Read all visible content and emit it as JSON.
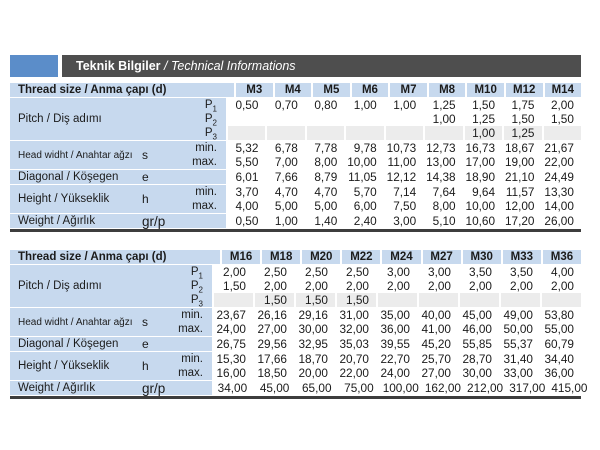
{
  "title": {
    "bold": "Teknik Bilgiler",
    "italic": "/ Technical Informations"
  },
  "colors": {
    "accent_blue": "#5b8dc9",
    "bar_dark": "#4e4e4e",
    "cell_blue": "#c7d9ee",
    "cell_gray": "#ececec",
    "text": "#1b1b1b"
  },
  "tables": [
    {
      "name": "spec-table-m3-m14",
      "header_label": "Thread size / Anma çapı (d)",
      "columns": [
        "M3",
        "M4",
        "M5",
        "M6",
        "M7",
        "M8",
        "M10",
        "M12",
        "M14"
      ],
      "row_groups": [
        {
          "label": "Pitch / Diş adımı",
          "symbol": "",
          "rows": [
            {
              "sub": "P",
              "subscript": "1",
              "shade": false,
              "values": [
                "0,50",
                "0,70",
                "0,80",
                "1,00",
                "1,00",
                "1,25",
                "1,50",
                "1,75",
                "2,00"
              ]
            },
            {
              "sub": "P",
              "subscript": "2",
              "shade": false,
              "values": [
                "",
                "",
                "",
                "",
                "",
                "1,00",
                "1,25",
                "1,50",
                "1,50"
              ]
            },
            {
              "sub": "P",
              "subscript": "3",
              "shade": true,
              "values": [
                "",
                "",
                "",
                "",
                "",
                "",
                "1,00",
                "1,25",
                ""
              ]
            }
          ]
        },
        {
          "label": "Head widht / Anahtar ağzı",
          "symbol": "s",
          "rows": [
            {
              "sub": "min.",
              "subscript": "",
              "shade": false,
              "values": [
                "5,32",
                "6,78",
                "7,78",
                "9,78",
                "10,73",
                "12,73",
                "16,73",
                "18,67",
                "21,67"
              ]
            },
            {
              "sub": "max.",
              "subscript": "",
              "shade": false,
              "values": [
                "5,50",
                "7,00",
                "8,00",
                "10,00",
                "11,00",
                "13,00",
                "17,00",
                "19,00",
                "22,00"
              ]
            }
          ]
        },
        {
          "label": "Diagonal / Köşegen",
          "symbol": "e",
          "rows": [
            {
              "sub": "",
              "subscript": "",
              "shade": false,
              "values": [
                "6,01",
                "7,66",
                "8,79",
                "11,05",
                "12,12",
                "14,38",
                "18,90",
                "21,10",
                "24,49"
              ]
            }
          ]
        },
        {
          "label": "Height / Yükseklik",
          "symbol": "h",
          "rows": [
            {
              "sub": "min.",
              "subscript": "",
              "shade": false,
              "values": [
                "3,70",
                "4,70",
                "4,70",
                "5,70",
                "7,14",
                "7,64",
                "9,64",
                "11,57",
                "13,30"
              ]
            },
            {
              "sub": "max.",
              "subscript": "",
              "shade": false,
              "values": [
                "4,00",
                "5,00",
                "5,00",
                "6,00",
                "7,50",
                "8,00",
                "10,00",
                "12,00",
                "14,00"
              ]
            }
          ]
        },
        {
          "label": "Weight / Ağırlık",
          "symbol": "gr/p",
          "rows": [
            {
              "sub": "",
              "subscript": "",
              "shade": false,
              "values": [
                "0,50",
                "1,00",
                "1,40",
                "2,40",
                "3,00",
                "5,10",
                "10,60",
                "17,20",
                "26,00"
              ]
            }
          ]
        }
      ]
    },
    {
      "name": "spec-table-m16-m36",
      "header_label": "Thread size / Anma çapı (d)",
      "columns": [
        "M16",
        "M18",
        "M20",
        "M22",
        "M24",
        "M27",
        "M30",
        "M33",
        "M36"
      ],
      "row_groups": [
        {
          "label": "Pitch / Diş adımı",
          "symbol": "",
          "rows": [
            {
              "sub": "P",
              "subscript": "1",
              "shade": false,
              "values": [
                "2,00",
                "2,50",
                "2,50",
                "2,50",
                "3,00",
                "3,00",
                "3,50",
                "3,50",
                "4,00"
              ]
            },
            {
              "sub": "P",
              "subscript": "2",
              "shade": false,
              "values": [
                "1,50",
                "2,00",
                "2,00",
                "2,00",
                "2,00",
                "2,00",
                "2,00",
                "2,00",
                "2,00"
              ]
            },
            {
              "sub": "P",
              "subscript": "3",
              "shade": true,
              "values": [
                "",
                "1,50",
                "1,50",
                "1,50",
                "",
                "",
                "",
                "",
                ""
              ]
            }
          ]
        },
        {
          "label": "Head widht / Anahtar ağzı",
          "symbol": "s",
          "rows": [
            {
              "sub": "min.",
              "subscript": "",
              "shade": false,
              "values": [
                "23,67",
                "26,16",
                "29,16",
                "31,00",
                "35,00",
                "40,00",
                "45,00",
                "49,00",
                "53,80"
              ]
            },
            {
              "sub": "max.",
              "subscript": "",
              "shade": false,
              "values": [
                "24,00",
                "27,00",
                "30,00",
                "32,00",
                "36,00",
                "41,00",
                "46,00",
                "50,00",
                "55,00"
              ]
            }
          ]
        },
        {
          "label": "Diagonal / Köşegen",
          "symbol": "e",
          "rows": [
            {
              "sub": "",
              "subscript": "",
              "shade": false,
              "values": [
                "26,75",
                "29,56",
                "32,95",
                "35,03",
                "39,55",
                "45,20",
                "55,85",
                "55,37",
                "60,79"
              ]
            }
          ]
        },
        {
          "label": "Height / Yükseklik",
          "symbol": "h",
          "rows": [
            {
              "sub": "min.",
              "subscript": "",
              "shade": false,
              "values": [
                "15,30",
                "17,66",
                "18,70",
                "20,70",
                "22,70",
                "25,70",
                "28,70",
                "31,40",
                "34,40"
              ]
            },
            {
              "sub": "max.",
              "subscript": "",
              "shade": false,
              "values": [
                "16,00",
                "18,50",
                "20,00",
                "22,00",
                "24,00",
                "27,00",
                "30,00",
                "33,00",
                "36,00"
              ]
            }
          ]
        },
        {
          "label": "Weight / Ağırlık",
          "symbol": "gr/p",
          "rows": [
            {
              "sub": "",
              "subscript": "",
              "shade": false,
              "values": [
                "34,00",
                "45,00",
                "65,00",
                "75,00",
                "100,00",
                "162,00",
                "212,00",
                "317,00",
                "415,00"
              ]
            }
          ]
        }
      ]
    }
  ]
}
